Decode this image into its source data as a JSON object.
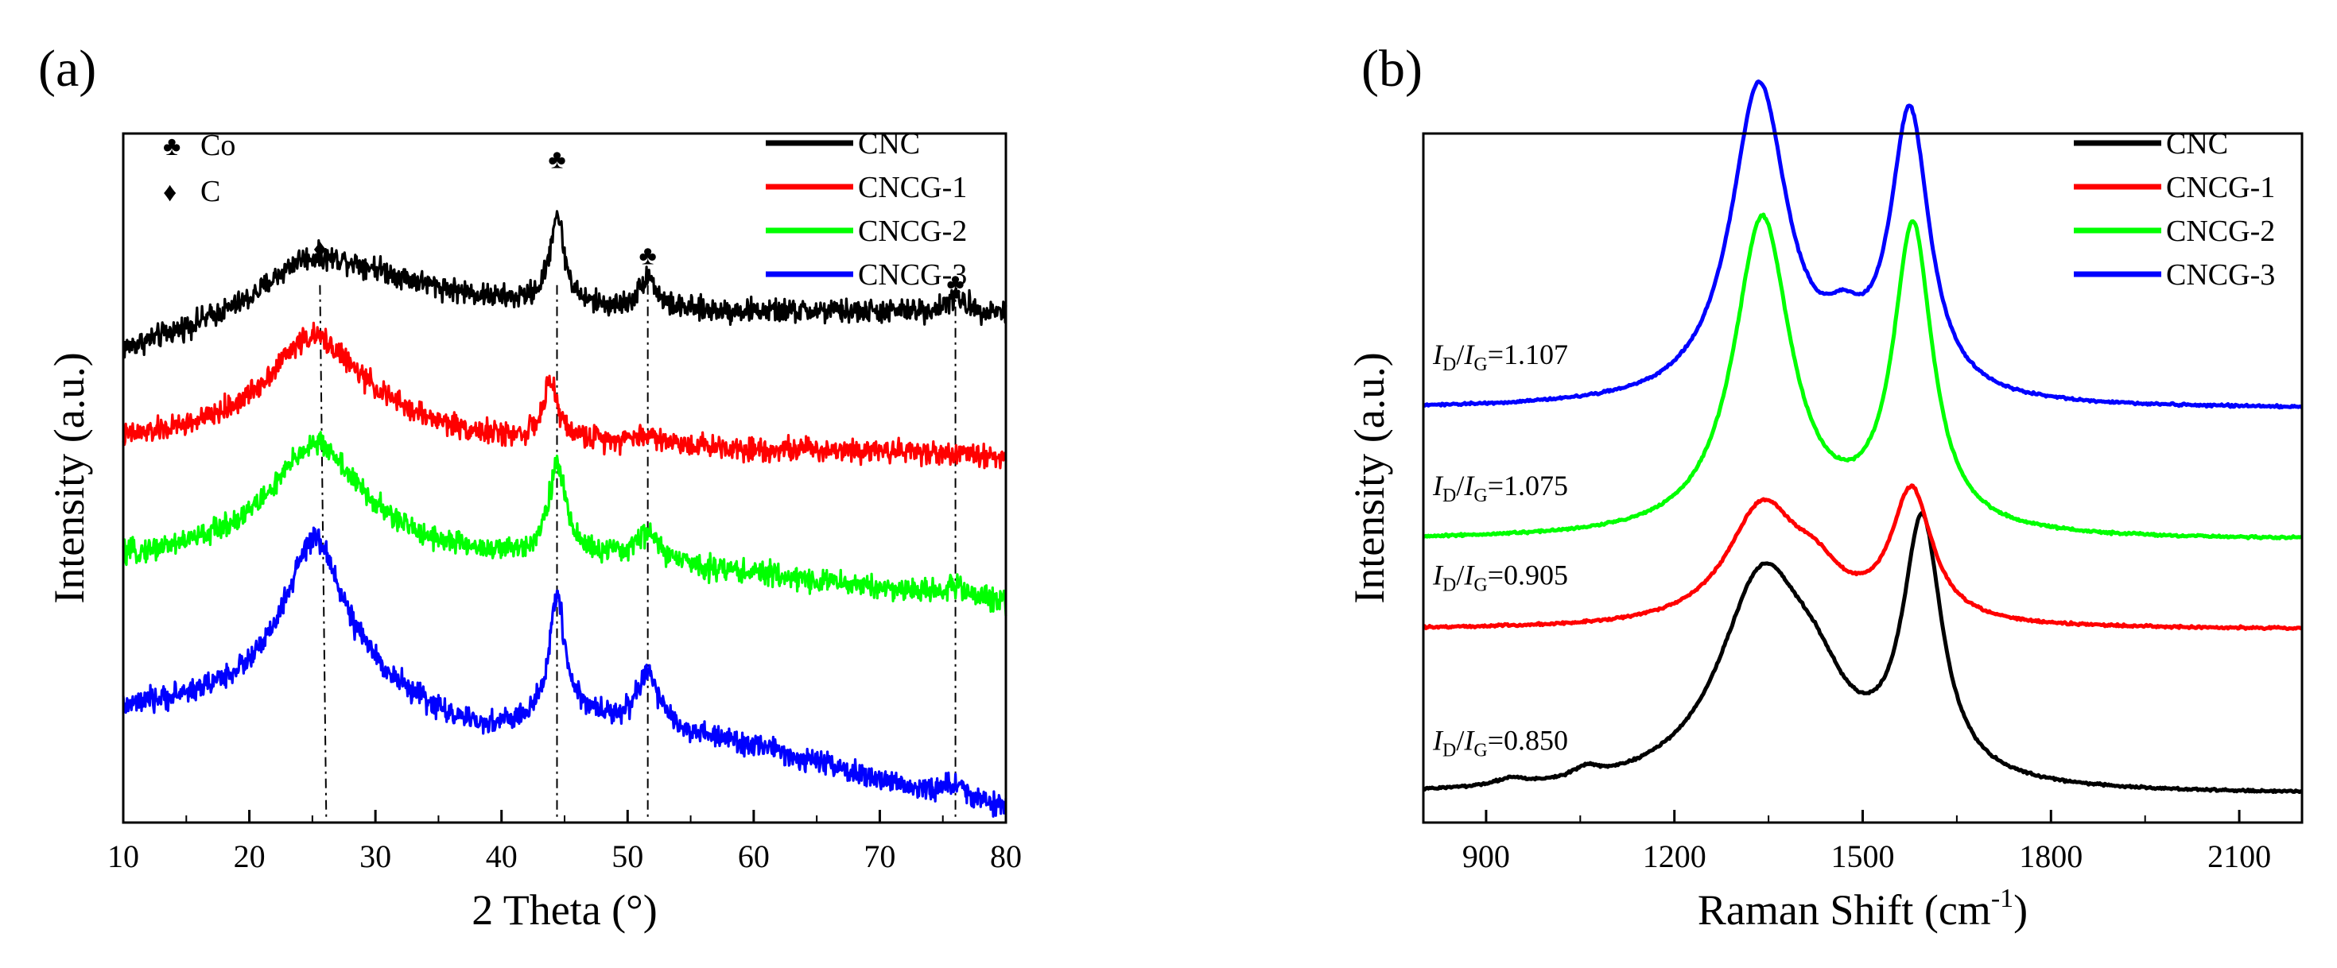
{
  "chart_data": [
    {
      "type": "line",
      "panel_label": "(a)",
      "xlabel": "2 Theta (°)",
      "ylabel": "Intensity (a.u.)",
      "xlim": [
        10,
        80
      ],
      "xticks": [
        10,
        20,
        30,
        40,
        50,
        60,
        70,
        80
      ],
      "ylim": [
        0,
        100
      ],
      "grid": false,
      "y_tick_labels": false,
      "legend_position": "top-right",
      "series": [
        {
          "name": "CNC",
          "color": "#000000",
          "offset": 74,
          "peaks": [
            [
              25.5,
              5.0,
              7.0
            ],
            [
              44.4,
              13.0,
              0.7
            ],
            [
              51.6,
              5.0,
              0.8
            ],
            [
              76.0,
              2.0,
              1.0
            ]
          ],
          "baseline": [
            [
              10,
              -6
            ],
            [
              20,
              -1
            ],
            [
              24,
              3
            ],
            [
              30,
              3
            ],
            [
              40,
              1
            ],
            [
              50,
              0
            ],
            [
              60,
              0
            ],
            [
              70,
              0
            ],
            [
              80,
              0
            ]
          ]
        },
        {
          "name": "CNCG-1",
          "color": "#ff0000",
          "offset": 55,
          "peaks": [
            [
              25.0,
              14.0,
              4.5
            ],
            [
              43.9,
              8.0,
              0.7
            ],
            [
              51.6,
              1.0,
              1.0
            ]
          ],
          "baseline": [
            [
              10,
              0
            ],
            [
              20,
              1
            ],
            [
              30,
              2
            ],
            [
              40,
              0
            ],
            [
              50,
              0
            ],
            [
              60,
              -1
            ],
            [
              70,
              -1
            ],
            [
              80,
              -2
            ]
          ]
        },
        {
          "name": "CNCG-2",
          "color": "#00ff00",
          "offset": 38,
          "peaks": [
            [
              25.3,
              15.0,
              4.0
            ],
            [
              44.4,
              13.0,
              0.9
            ],
            [
              51.6,
              4.0,
              1.0
            ],
            [
              76.0,
              1.5,
              1.0
            ]
          ],
          "baseline": [
            [
              10,
              0
            ],
            [
              20,
              2
            ],
            [
              30,
              2
            ],
            [
              40,
              0
            ],
            [
              50,
              0
            ],
            [
              60,
              -2
            ],
            [
              70,
              -4
            ],
            [
              80,
              -6
            ]
          ]
        },
        {
          "name": "CNCG-3",
          "color": "#0000ff",
          "offset": 16,
          "peaks": [
            [
              25.2,
              22.0,
              3.0
            ],
            [
              44.4,
              17.0,
              0.7
            ],
            [
              51.6,
              8.0,
              1.0
            ],
            [
              76.0,
              2.0,
              1.0
            ]
          ],
          "baseline": [
            [
              10,
              0
            ],
            [
              18,
              2
            ],
            [
              25,
              3
            ],
            [
              30,
              2
            ],
            [
              38,
              -3
            ],
            [
              42,
              -2
            ],
            [
              45,
              0
            ],
            [
              50,
              -2
            ],
            [
              60,
              -5
            ],
            [
              70,
              -10
            ],
            [
              80,
              -14
            ]
          ]
        }
      ],
      "reference_lines": [
        25.6,
        44.4,
        51.6,
        76.0
      ],
      "legend_markers": [
        {
          "symbol": "♣",
          "label": "Co"
        },
        {
          "symbol": "♦",
          "label": "C"
        }
      ],
      "peak_markers": [
        {
          "x": 25.6,
          "y": 82,
          "symbol": "♦"
        },
        {
          "x": 44.4,
          "y": 95,
          "symbol": "♣"
        },
        {
          "x": 51.6,
          "y": 81,
          "symbol": "♣"
        },
        {
          "x": 76.0,
          "y": 77,
          "symbol": "♣"
        }
      ]
    },
    {
      "type": "line",
      "panel_label": "(b)",
      "xlabel": "Raman Shift (cm⁻¹)",
      "ylabel": "Intensity (a.u.)",
      "xlim": [
        800,
        2200
      ],
      "xticks": [
        900,
        1200,
        1500,
        1800,
        2100
      ],
      "ylim": [
        0,
        100
      ],
      "grid": false,
      "y_tick_labels": false,
      "legend_position": "top-right",
      "series": [
        {
          "name": "CNC",
          "color": "#000000",
          "offset": 4,
          "ratio": "0.850",
          "peaks": [
            [
              1340,
              30.0,
              85
            ],
            [
              1425,
              8.0,
              60
            ],
            [
              1595,
              37.0,
              38
            ],
            [
              940,
              1.0,
              30
            ],
            [
              1060,
              1.5,
              25
            ]
          ]
        },
        {
          "name": "CNCG-1",
          "color": "#ff0000",
          "offset": 28,
          "ratio": "0.905",
          "peaks": [
            [
              1340,
              17.0,
              70
            ],
            [
              1425,
              5.0,
              50
            ],
            [
              1578,
              19.0,
              40
            ]
          ]
        },
        {
          "name": "CNCG-2",
          "color": "#00ff00",
          "offset": 41,
          "ratio": "1.075",
          "peaks": [
            [
              1340,
              46.0,
              55
            ],
            [
              1580,
              44.0,
              38
            ]
          ]
        },
        {
          "name": "CNCG-3",
          "color": "#0000ff",
          "offset": 60,
          "ratio": "1.107",
          "peaks": [
            [
              1335,
              46.0,
              55
            ],
            [
              1470,
              6.0,
              40
            ],
            [
              1575,
              41.0,
              38
            ]
          ]
        }
      ]
    }
  ]
}
